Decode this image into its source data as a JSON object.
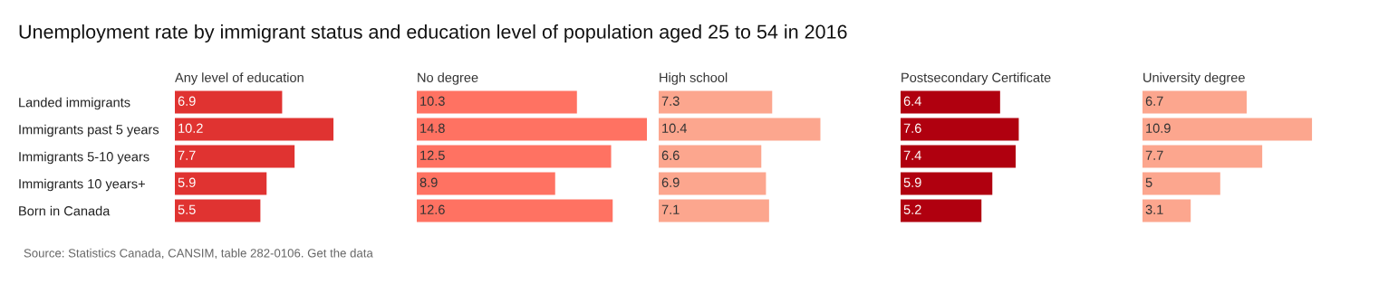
{
  "chart_data": [
    {
      "type": "other",
      "title": "Unemployment rate by immigrant status and education level of population aged 25 to 54 in 2016",
      "annotations": [
        "Source: Statistics Canada, CANSIM, table 282-0106. Get the data"
      ]
    },
    {
      "type": "bar",
      "orientation": "horizontal",
      "title": "Any level of education",
      "categories": [
        "Landed immigrants",
        "Immigrants past 5 years",
        "Immigrants 5-10 years",
        "Immigrants 10 years+",
        "Born in Canada"
      ],
      "values": [
        6.9,
        10.2,
        7.7,
        5.9,
        5.5
      ],
      "color": "#e03331",
      "data_labels": true,
      "tick_labels": "y"
    },
    {
      "type": "bar",
      "orientation": "horizontal",
      "title": "No degree",
      "categories": [
        null,
        null,
        null,
        null,
        null
      ],
      "values": [
        10.3,
        14.8,
        12.5,
        8.9,
        12.6
      ],
      "color": "#ff7262",
      "data_labels": true,
      "tick_labels": false
    },
    {
      "type": "bar",
      "orientation": "horizontal",
      "title": "High school",
      "categories": [
        null,
        null,
        null,
        null,
        null
      ],
      "values": [
        7.3,
        10.4,
        6.6,
        6.9,
        7.1
      ],
      "color": "#fca68e",
      "data_labels": true,
      "tick_labels": false
    },
    {
      "type": "bar",
      "orientation": "horizontal",
      "title": "Postsecondary Certificate",
      "categories": [
        null,
        null,
        null,
        null,
        null
      ],
      "values": [
        6.4,
        7.6,
        7.4,
        5.9,
        5.2
      ],
      "color": "#b0000f",
      "data_labels": true,
      "tick_labels": false
    },
    {
      "type": "bar",
      "orientation": "horizontal",
      "title": "University degree",
      "categories": [
        null,
        null,
        null,
        null,
        null
      ],
      "values": [
        6.7,
        10.9,
        7.7,
        5,
        3.1
      ],
      "color": "#fca68e",
      "data_labels": true,
      "tick_labels": false
    }
  ]
}
